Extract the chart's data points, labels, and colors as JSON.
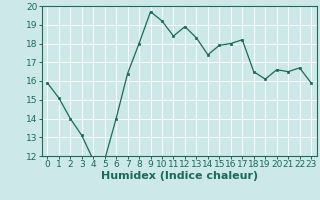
{
  "x": [
    0,
    1,
    2,
    3,
    4,
    5,
    6,
    7,
    8,
    9,
    10,
    11,
    12,
    13,
    14,
    15,
    16,
    17,
    18,
    19,
    20,
    21,
    22,
    23
  ],
  "y": [
    15.9,
    15.1,
    14.0,
    13.1,
    11.8,
    11.8,
    14.0,
    16.4,
    18.0,
    19.7,
    19.2,
    18.4,
    18.9,
    18.3,
    17.4,
    17.9,
    18.0,
    18.2,
    16.5,
    16.1,
    16.6,
    16.5,
    16.7,
    15.9
  ],
  "line_color": "#1a6b5a",
  "marker_color": "#1a6b5a",
  "bg_color": "#cce8e8",
  "grid_color": "#ffffff",
  "xlabel": "Humidex (Indice chaleur)",
  "ylim": [
    12,
    20
  ],
  "yticks": [
    12,
    13,
    14,
    15,
    16,
    17,
    18,
    19,
    20
  ],
  "xticks": [
    0,
    1,
    2,
    3,
    4,
    5,
    6,
    7,
    8,
    9,
    10,
    11,
    12,
    13,
    14,
    15,
    16,
    17,
    18,
    19,
    20,
    21,
    22,
    23
  ],
  "xlabel_color": "#1a6b5a",
  "tick_color": "#1a6b5a",
  "axis_label_fontsize": 8,
  "tick_fontsize": 6.5
}
